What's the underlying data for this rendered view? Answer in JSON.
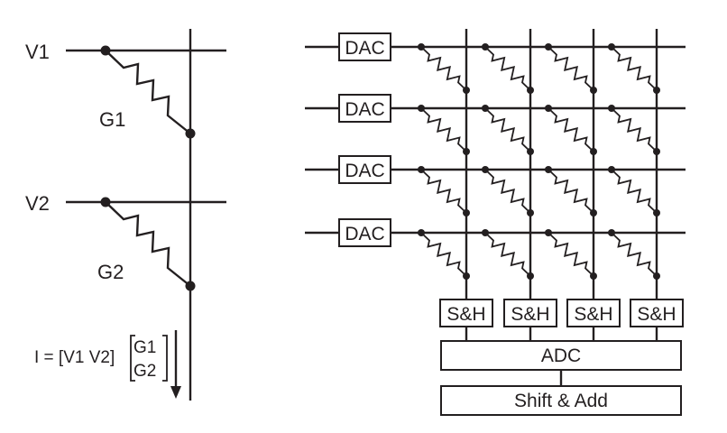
{
  "left_circuit": {
    "voltages": [
      "V1",
      "V2"
    ],
    "conductances": [
      "G1",
      "G2"
    ],
    "equation": {
      "lhs": "I = [V1 V2]",
      "matrix": [
        "G1",
        "G2"
      ]
    }
  },
  "crossbar": {
    "rows": 4,
    "columns": 4,
    "dac_label": "DAC",
    "sh_label": "S&H",
    "adc_label": "ADC",
    "shift_add_label": "Shift & Add"
  }
}
